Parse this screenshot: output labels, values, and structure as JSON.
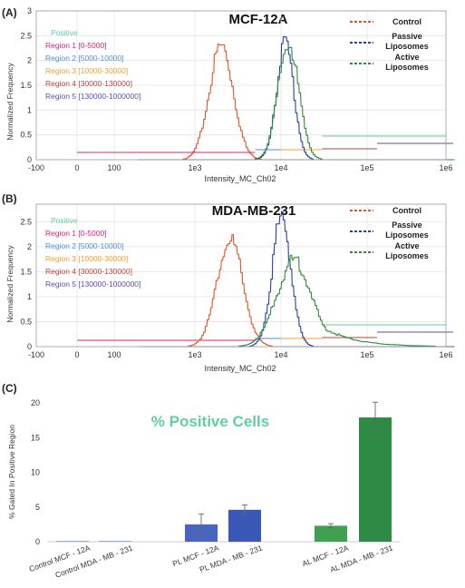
{
  "panels": [
    {
      "tag": "(A)",
      "title": "MCF-12A",
      "xlabel": "Intensity_MC_Ch02",
      "ylabel": "Normalized Frequency",
      "x_ticks": [
        "-100",
        "0",
        "100",
        "1e3",
        "1e4",
        "1e5",
        "1e6"
      ],
      "y_ticks": [
        "0",
        "0.5",
        "1",
        "1.5",
        "2",
        "2.5",
        "3"
      ]
    },
    {
      "tag": "(B)",
      "title": "MDA-MB-231",
      "xlabel": "Intensity_MC_Ch02",
      "ylabel": "Normalized Frequency",
      "x_ticks": [
        "-100",
        "0",
        "100",
        "1e3",
        "1e4",
        "1e5",
        "1e6"
      ],
      "y_ticks": [
        "0",
        "0.5",
        "1",
        "1.5",
        "2",
        "2.5"
      ]
    }
  ],
  "regions": [
    {
      "label": "Positive",
      "color": "#5fcf9a"
    },
    {
      "label": "Region 1 [0-5000]",
      "color": "#e0207f"
    },
    {
      "label": "Region 2 [5000-10000]",
      "color": "#4f8fd0"
    },
    {
      "label": "Region 3 [10000-30000]",
      "color": "#f0a030"
    },
    {
      "label": "Region 4 [30000-130000]",
      "color": "#c04040"
    },
    {
      "label": "Region 5 [130000-1000000]",
      "color": "#5a4fb0"
    }
  ],
  "legend": [
    {
      "label": "Control",
      "color": "#e0552a"
    },
    {
      "label": "Passive Liposomes",
      "color": "#2a3f9a"
    },
    {
      "label": "Active Liposomes",
      "color": "#2e8b3a"
    }
  ],
  "bar_panel": {
    "tag": "(C)",
    "title": "% Positive Cells",
    "ylabel": "% Gated In Positive Region",
    "y_ticks": [
      "0",
      "5",
      "10",
      "15",
      "20"
    ]
  },
  "chart_data": [
    {
      "type": "line",
      "title": "MCF-12A",
      "xlabel": "Intensity_MC_Ch02",
      "ylabel": "Normalized Frequency",
      "xscale": "log",
      "ylim": [
        0,
        3
      ],
      "grid": true,
      "legend_position": "top-right",
      "series": [
        {
          "name": "Control",
          "peak_x": 2000,
          "peak_y": 2.4
        },
        {
          "name": "Passive Liposomes",
          "peak_x": 11000,
          "peak_y": 2.45
        },
        {
          "name": "Active Liposomes",
          "peak_x": 12000,
          "peak_y": 2.45
        }
      ],
      "regions": [
        {
          "name": "Region 1",
          "range": [
            0,
            5000
          ]
        },
        {
          "name": "Region 2",
          "range": [
            5000,
            10000
          ]
        },
        {
          "name": "Region 3",
          "range": [
            10000,
            30000
          ]
        },
        {
          "name": "Region 4",
          "range": [
            30000,
            130000
          ]
        },
        {
          "name": "Region 5",
          "range": [
            130000,
            1000000
          ]
        }
      ]
    },
    {
      "type": "line",
      "title": "MDA-MB-231",
      "xlabel": "Intensity_MC_Ch02",
      "ylabel": "Normalized Frequency",
      "xscale": "log",
      "ylim": [
        0,
        2.8
      ],
      "grid": true,
      "legend_position": "top-right",
      "series": [
        {
          "name": "Control",
          "peak_x": 2500,
          "peak_y": 2.25
        },
        {
          "name": "Passive Liposomes",
          "peak_x": 10000,
          "peak_y": 2.7
        },
        {
          "name": "Active Liposomes",
          "peak_x": 14000,
          "peak_y": 1.8
        }
      ],
      "regions": [
        {
          "name": "Region 1",
          "range": [
            0,
            5000
          ]
        },
        {
          "name": "Region 2",
          "range": [
            5000,
            10000
          ]
        },
        {
          "name": "Region 3",
          "range": [
            10000,
            30000
          ]
        },
        {
          "name": "Region 4",
          "range": [
            30000,
            130000
          ]
        },
        {
          "name": "Region 5",
          "range": [
            130000,
            1000000
          ]
        }
      ]
    },
    {
      "type": "bar",
      "title": "% Positive Cells",
      "ylabel": "% Gated In Positive Region",
      "ylim": [
        0,
        20
      ],
      "categories": [
        "Control MCF - 12A",
        "Control MDA - MB - 231",
        "PL MCF - 12A",
        "PL MDA - MB - 231",
        "AL MCF - 12A",
        "AL MDA - MB - 231"
      ],
      "values": [
        0.05,
        0.05,
        2.5,
        4.6,
        2.3,
        17.9
      ],
      "errors": [
        0,
        0,
        1.5,
        0.7,
        0.3,
        2.2
      ],
      "colors": [
        "#4f6fc0",
        "#4f6fc0",
        "#4a65bf",
        "#3a57b8",
        "#3fa050",
        "#2e8b45"
      ]
    }
  ]
}
